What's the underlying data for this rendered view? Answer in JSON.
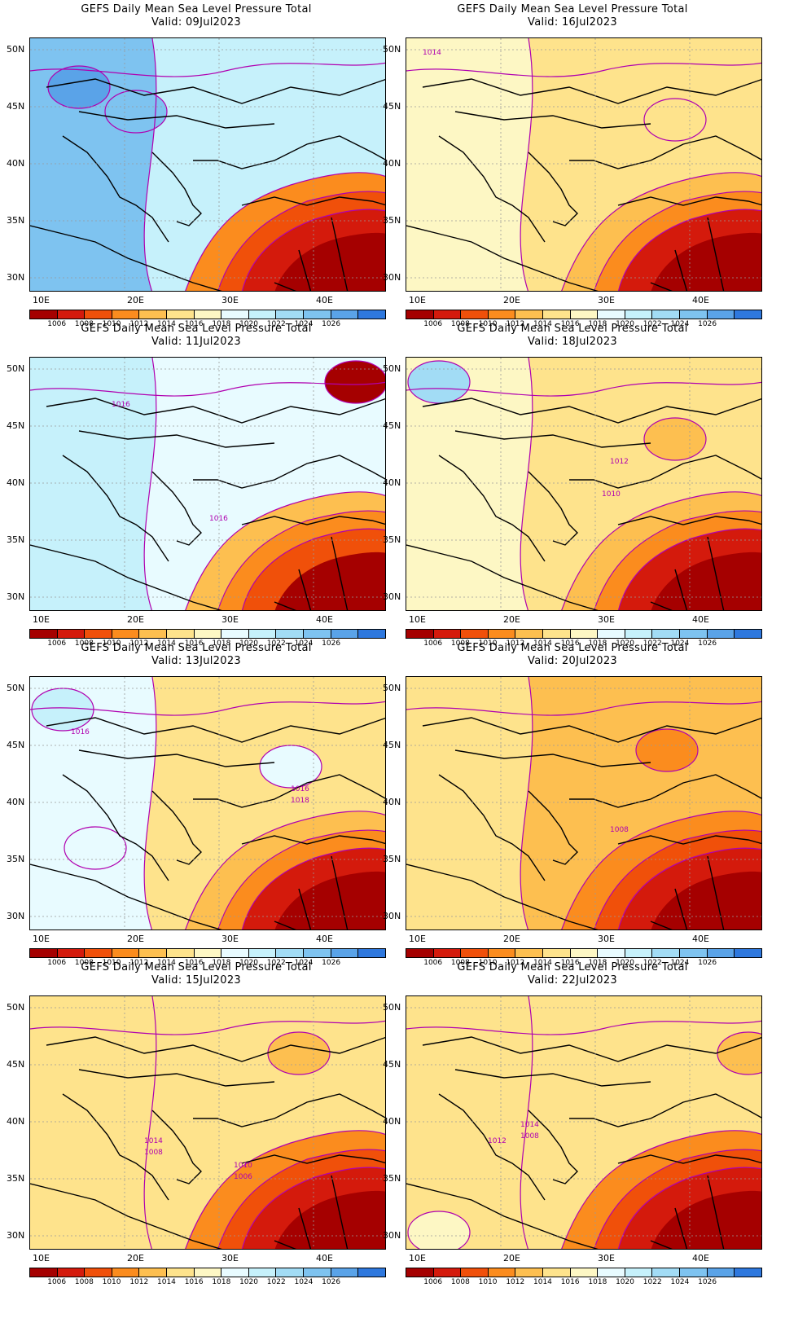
{
  "panels": [
    {
      "title": "GEFS Daily Mean Sea Level Pressure Total",
      "valid": "Valid: 09Jul2023",
      "labels": []
    },
    {
      "title": "GEFS Daily Mean Sea Level Pressure Total",
      "valid": "Valid: 16Jul2023",
      "labels": [
        "1014"
      ]
    },
    {
      "title": "GEFS Daily Mean Sea Level Pressure Total",
      "valid": "Valid: 11Jul2023",
      "labels": [
        "1016",
        "1016"
      ]
    },
    {
      "title": "GEFS Daily Mean Sea Level Pressure Total",
      "valid": "Valid: 18Jul2023",
      "labels": [
        "1012",
        "1010"
      ]
    },
    {
      "title": "GEFS Daily Mean Sea Level Pressure Total",
      "valid": "Valid: 13Jul2023",
      "labels": [
        "1016",
        "1016",
        "1018"
      ]
    },
    {
      "title": "GEFS Daily Mean Sea Level Pressure Total",
      "valid": "Valid: 20Jul2023",
      "labels": [
        "1008"
      ]
    },
    {
      "title": "GEFS Daily Mean Sea Level Pressure Total",
      "valid": "Valid: 15Jul2023",
      "labels": [
        "1014",
        "1010",
        "1008",
        "1006"
      ]
    },
    {
      "title": "GEFS Daily Mean Sea Level Pressure Total",
      "valid": "Valid: 22Jul2023",
      "labels": [
        "1014",
        "1012",
        "1008"
      ]
    }
  ],
  "lat_labels": [
    "50N",
    "45N",
    "40N",
    "35N",
    "30N"
  ],
  "lon_labels": [
    "10E",
    "20E",
    "30E",
    "40E"
  ],
  "colorbar": {
    "values": [
      "1006",
      "1008",
      "1010",
      "1012",
      "1014",
      "1016",
      "1018",
      "1020",
      "1022",
      "1024",
      "1026"
    ],
    "colors": [
      "#a50000",
      "#d41a0c",
      "#f0500a",
      "#fb8c1e",
      "#fdbf50",
      "#fee38c",
      "#fdf7c4",
      "#e8fbff",
      "#c6f1fb",
      "#a2dcf5",
      "#7ec3f0",
      "#5aa3e8",
      "#2e78de"
    ]
  },
  "contour_color": "#b000b0"
}
